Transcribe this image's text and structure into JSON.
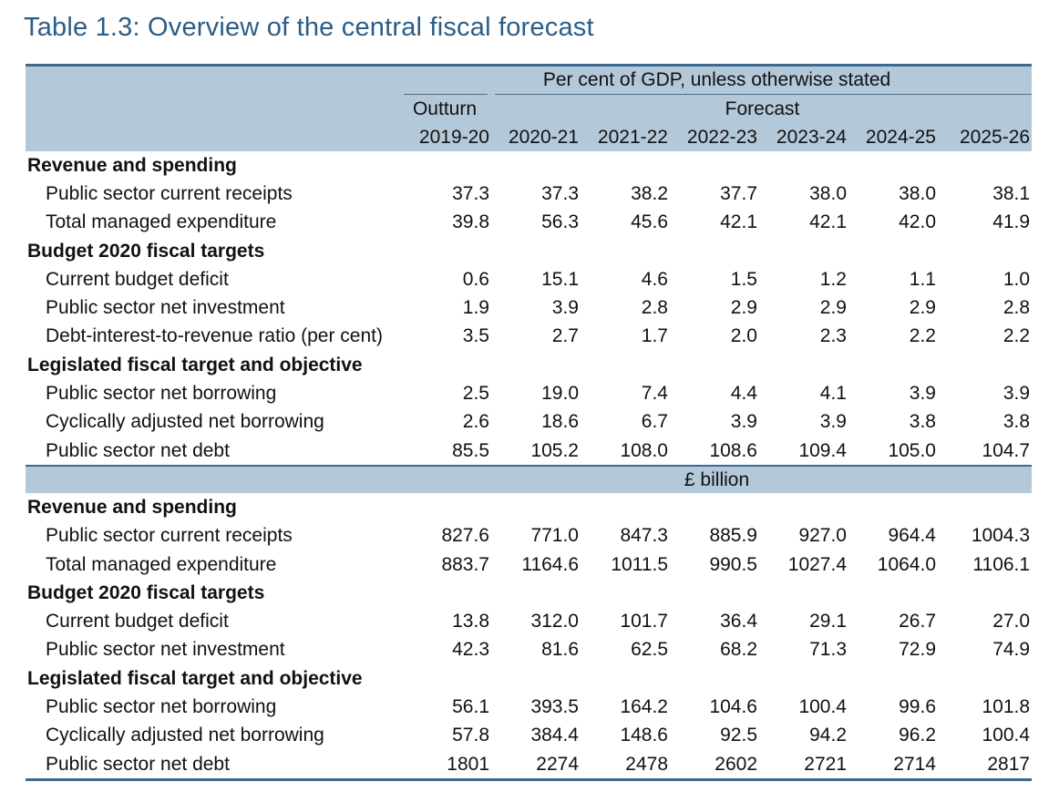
{
  "title": "Table 1.3: Overview of the central fiscal forecast",
  "header": {
    "units": "Per cent of GDP, unless otherwise stated",
    "outturn": "Outturn",
    "forecast": "Forecast",
    "years": [
      "2019-20",
      "2020-21",
      "2021-22",
      "2022-23",
      "2023-24",
      "2024-25",
      "2025-26"
    ]
  },
  "gdp": {
    "rev_section": "Revenue and spending",
    "rows_rev": [
      {
        "label": "Public sector current receipts",
        "values": [
          "37.3",
          "37.3",
          "38.2",
          "37.7",
          "38.0",
          "38.0",
          "38.1"
        ]
      },
      {
        "label": "Total managed expenditure",
        "values": [
          "39.8",
          "56.3",
          "45.6",
          "42.1",
          "42.1",
          "42.0",
          "41.9"
        ]
      }
    ],
    "budget_section": "Budget 2020 fiscal targets",
    "rows_budget": [
      {
        "label": "Current budget deficit",
        "values": [
          "0.6",
          "15.1",
          "4.6",
          "1.5",
          "1.2",
          "1.1",
          "1.0"
        ]
      },
      {
        "label": "Public sector net investment",
        "values": [
          "1.9",
          "3.9",
          "2.8",
          "2.9",
          "2.9",
          "2.9",
          "2.8"
        ]
      },
      {
        "label": "Debt-interest-to-revenue ratio (per cent)",
        "values": [
          "3.5",
          "2.7",
          "1.7",
          "2.0",
          "2.3",
          "2.2",
          "2.2"
        ]
      }
    ],
    "legis_section": "Legislated fiscal target and objective",
    "rows_legis": [
      {
        "label": "Public sector net borrowing",
        "values": [
          "2.5",
          "19.0",
          "7.4",
          "4.4",
          "4.1",
          "3.9",
          "3.9"
        ]
      },
      {
        "label": "Cyclically adjusted net borrowing",
        "values": [
          "2.6",
          "18.6",
          "6.7",
          "3.9",
          "3.9",
          "3.8",
          "3.8"
        ]
      },
      {
        "label": "Public sector net debt",
        "values": [
          "85.5",
          "105.2",
          "108.0",
          "108.6",
          "109.4",
          "105.0",
          "104.7"
        ]
      }
    ]
  },
  "bn": {
    "unit": "£ billion",
    "rev_section": "Revenue and spending",
    "rows_rev": [
      {
        "label": "Public sector current receipts",
        "values": [
          "827.6",
          "771.0",
          "847.3",
          "885.9",
          "927.0",
          "964.4",
          "1004.3"
        ]
      },
      {
        "label": "Total managed expenditure",
        "values": [
          "883.7",
          "1164.6",
          "1011.5",
          "990.5",
          "1027.4",
          "1064.0",
          "1106.1"
        ]
      }
    ],
    "budget_section": "Budget 2020 fiscal targets",
    "rows_budget": [
      {
        "label": "Current budget deficit",
        "values": [
          "13.8",
          "312.0",
          "101.7",
          "36.4",
          "29.1",
          "26.7",
          "27.0"
        ]
      },
      {
        "label": "Public sector net investment",
        "values": [
          "42.3",
          "81.6",
          "62.5",
          "68.2",
          "71.3",
          "72.9",
          "74.9"
        ]
      }
    ],
    "legis_section": "Legislated fiscal target and objective",
    "rows_legis": [
      {
        "label": "Public sector net borrowing",
        "values": [
          "56.1",
          "393.5",
          "164.2",
          "104.6",
          "100.4",
          "99.6",
          "101.8"
        ]
      },
      {
        "label": "Cyclically adjusted net borrowing",
        "values": [
          "57.8",
          "384.4",
          "148.6",
          "92.5",
          "94.2",
          "96.2",
          "100.4"
        ]
      },
      {
        "label": "Public sector net debt",
        "values": [
          "1801",
          "2274",
          "2478",
          "2602",
          "2721",
          "2714",
          "2817"
        ]
      }
    ]
  }
}
